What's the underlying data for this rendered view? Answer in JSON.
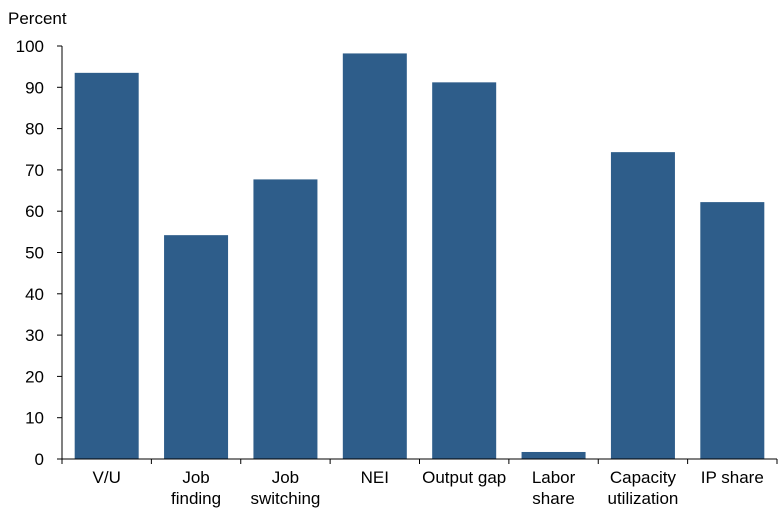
{
  "chart_data": {
    "type": "bar",
    "ylabel": "Percent",
    "ylim": [
      0,
      100
    ],
    "yticks": [
      0,
      10,
      20,
      30,
      40,
      50,
      60,
      70,
      80,
      90,
      100
    ],
    "categories": [
      [
        "V/U"
      ],
      [
        "Job",
        "finding"
      ],
      [
        "Job",
        "switching"
      ],
      [
        "NEI"
      ],
      [
        "Output gap"
      ],
      [
        "Labor",
        "share"
      ],
      [
        "Capacity",
        "utilization"
      ],
      [
        "IP share"
      ]
    ],
    "values": [
      93.5,
      54.2,
      67.7,
      98.2,
      91.2,
      1.7,
      74.3,
      62.2
    ],
    "bar_color": "#2e5d8a",
    "grid": false,
    "legend": "none"
  }
}
